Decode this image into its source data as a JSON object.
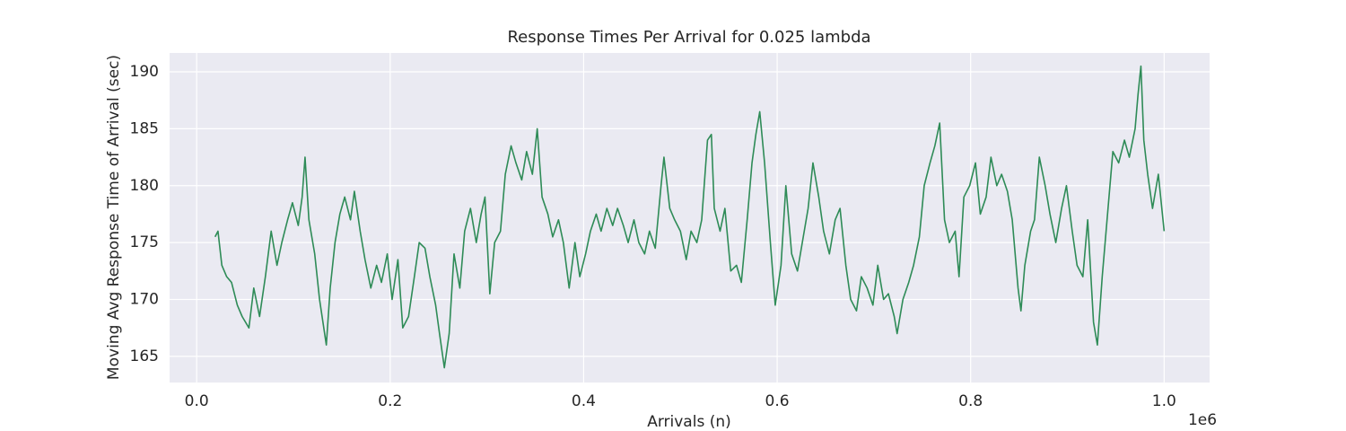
{
  "chart_data": {
    "type": "line",
    "title": "Response Times Per Arrival for 0.025 lambda",
    "xlabel": "Arrivals (n)",
    "ylabel": "Moving Avg Response Time of Arrival (sec)",
    "x_offset_label": "1e6",
    "grid": true,
    "xlim": [
      -0.028,
      1.047
    ],
    "ylim": [
      162.7,
      191.66
    ],
    "xticks": [
      {
        "value": 0,
        "label": "0.0"
      },
      0.2,
      0.4,
      0.6,
      0.8,
      {
        "value": 1,
        "label": "1.0"
      }
    ],
    "yticks": [
      165,
      170,
      175,
      180,
      185,
      190
    ],
    "x": [
      0.019,
      0.022,
      0.026,
      0.031,
      0.036,
      0.042,
      0.047,
      0.054,
      0.059,
      0.065,
      0.071,
      0.077,
      0.083,
      0.088,
      0.094,
      0.099,
      0.105,
      0.109,
      0.112,
      0.116,
      0.122,
      0.127,
      0.134,
      0.138,
      0.143,
      0.148,
      0.153,
      0.159,
      0.163,
      0.169,
      0.174,
      0.18,
      0.186,
      0.191,
      0.197,
      0.202,
      0.208,
      0.213,
      0.219,
      0.225,
      0.23,
      0.236,
      0.241,
      0.247,
      0.251,
      0.256,
      0.261,
      0.266,
      0.272,
      0.277,
      0.283,
      0.289,
      0.294,
      0.298,
      0.303,
      0.308,
      0.314,
      0.319,
      0.325,
      0.33,
      0.336,
      0.341,
      0.347,
      0.352,
      0.357,
      0.363,
      0.368,
      0.374,
      0.379,
      0.385,
      0.391,
      0.396,
      0.402,
      0.407,
      0.413,
      0.418,
      0.424,
      0.43,
      0.435,
      0.441,
      0.446,
      0.452,
      0.457,
      0.463,
      0.468,
      0.474,
      0.48,
      0.483,
      0.489,
      0.494,
      0.5,
      0.506,
      0.511,
      0.517,
      0.522,
      0.528,
      0.532,
      0.535,
      0.541,
      0.546,
      0.552,
      0.558,
      0.563,
      0.569,
      0.574,
      0.578,
      0.582,
      0.587,
      0.593,
      0.598,
      0.604,
      0.609,
      0.615,
      0.621,
      0.626,
      0.632,
      0.637,
      0.643,
      0.648,
      0.654,
      0.66,
      0.665,
      0.671,
      0.676,
      0.682,
      0.687,
      0.693,
      0.699,
      0.704,
      0.71,
      0.715,
      0.721,
      0.724,
      0.73,
      0.736,
      0.741,
      0.747,
      0.752,
      0.758,
      0.763,
      0.768,
      0.773,
      0.778,
      0.784,
      0.788,
      0.793,
      0.799,
      0.805,
      0.81,
      0.816,
      0.821,
      0.827,
      0.832,
      0.838,
      0.843,
      0.849,
      0.852,
      0.856,
      0.862,
      0.866,
      0.871,
      0.877,
      0.882,
      0.888,
      0.894,
      0.899,
      0.905,
      0.91,
      0.916,
      0.921,
      0.927,
      0.931,
      0.936,
      0.942,
      0.947,
      0.953,
      0.959,
      0.964,
      0.97,
      0.973,
      0.976,
      0.979,
      0.983,
      0.988,
      0.994,
      1.0
    ],
    "series": [
      {
        "color": "#2e8b57",
        "values": [
          175.5,
          176,
          173,
          172,
          171.5,
          169.5,
          168.5,
          167.5,
          171,
          168.5,
          172,
          176,
          173,
          175,
          177,
          178.5,
          176.5,
          179,
          182.5,
          177,
          174,
          170,
          166,
          171,
          175,
          177.5,
          179,
          177,
          179.5,
          176,
          173.5,
          171,
          173,
          171.5,
          174,
          170,
          173.5,
          167.5,
          168.5,
          172,
          175,
          174.5,
          172,
          169.5,
          167,
          164,
          167,
          174,
          171,
          176,
          178,
          175,
          177.5,
          179,
          170.5,
          175,
          176,
          181,
          183.5,
          182,
          180.5,
          183,
          181,
          185,
          179,
          177.5,
          175.5,
          177,
          175,
          171,
          175,
          172,
          174,
          176,
          177.5,
          176,
          178,
          176.5,
          178,
          176.5,
          175,
          177,
          175,
          174,
          176,
          174.5,
          180,
          182.5,
          178,
          177,
          176,
          173.5,
          176,
          175,
          177,
          184,
          184.5,
          178,
          176,
          178,
          172.5,
          173,
          171.5,
          177,
          182,
          184.5,
          186.5,
          182,
          175,
          169.5,
          173,
          180,
          174,
          172.5,
          175,
          178,
          182,
          179,
          176,
          174,
          177,
          178,
          173,
          170,
          169,
          172,
          171,
          169.5,
          173,
          170,
          170.5,
          168.5,
          167,
          170,
          171.5,
          173,
          175.5,
          180,
          182,
          183.5,
          185.5,
          177,
          175,
          176,
          172,
          179,
          180,
          182,
          177.5,
          179,
          182.5,
          180,
          181,
          179.5,
          177,
          171,
          169,
          173,
          176,
          177,
          182.5,
          180,
          177.5,
          175,
          178,
          180,
          176,
          173,
          172,
          177,
          168,
          166,
          172,
          178,
          183,
          182,
          184,
          182.5,
          185,
          188,
          190.5,
          184,
          181,
          178,
          181,
          176
        ]
      }
    ]
  }
}
